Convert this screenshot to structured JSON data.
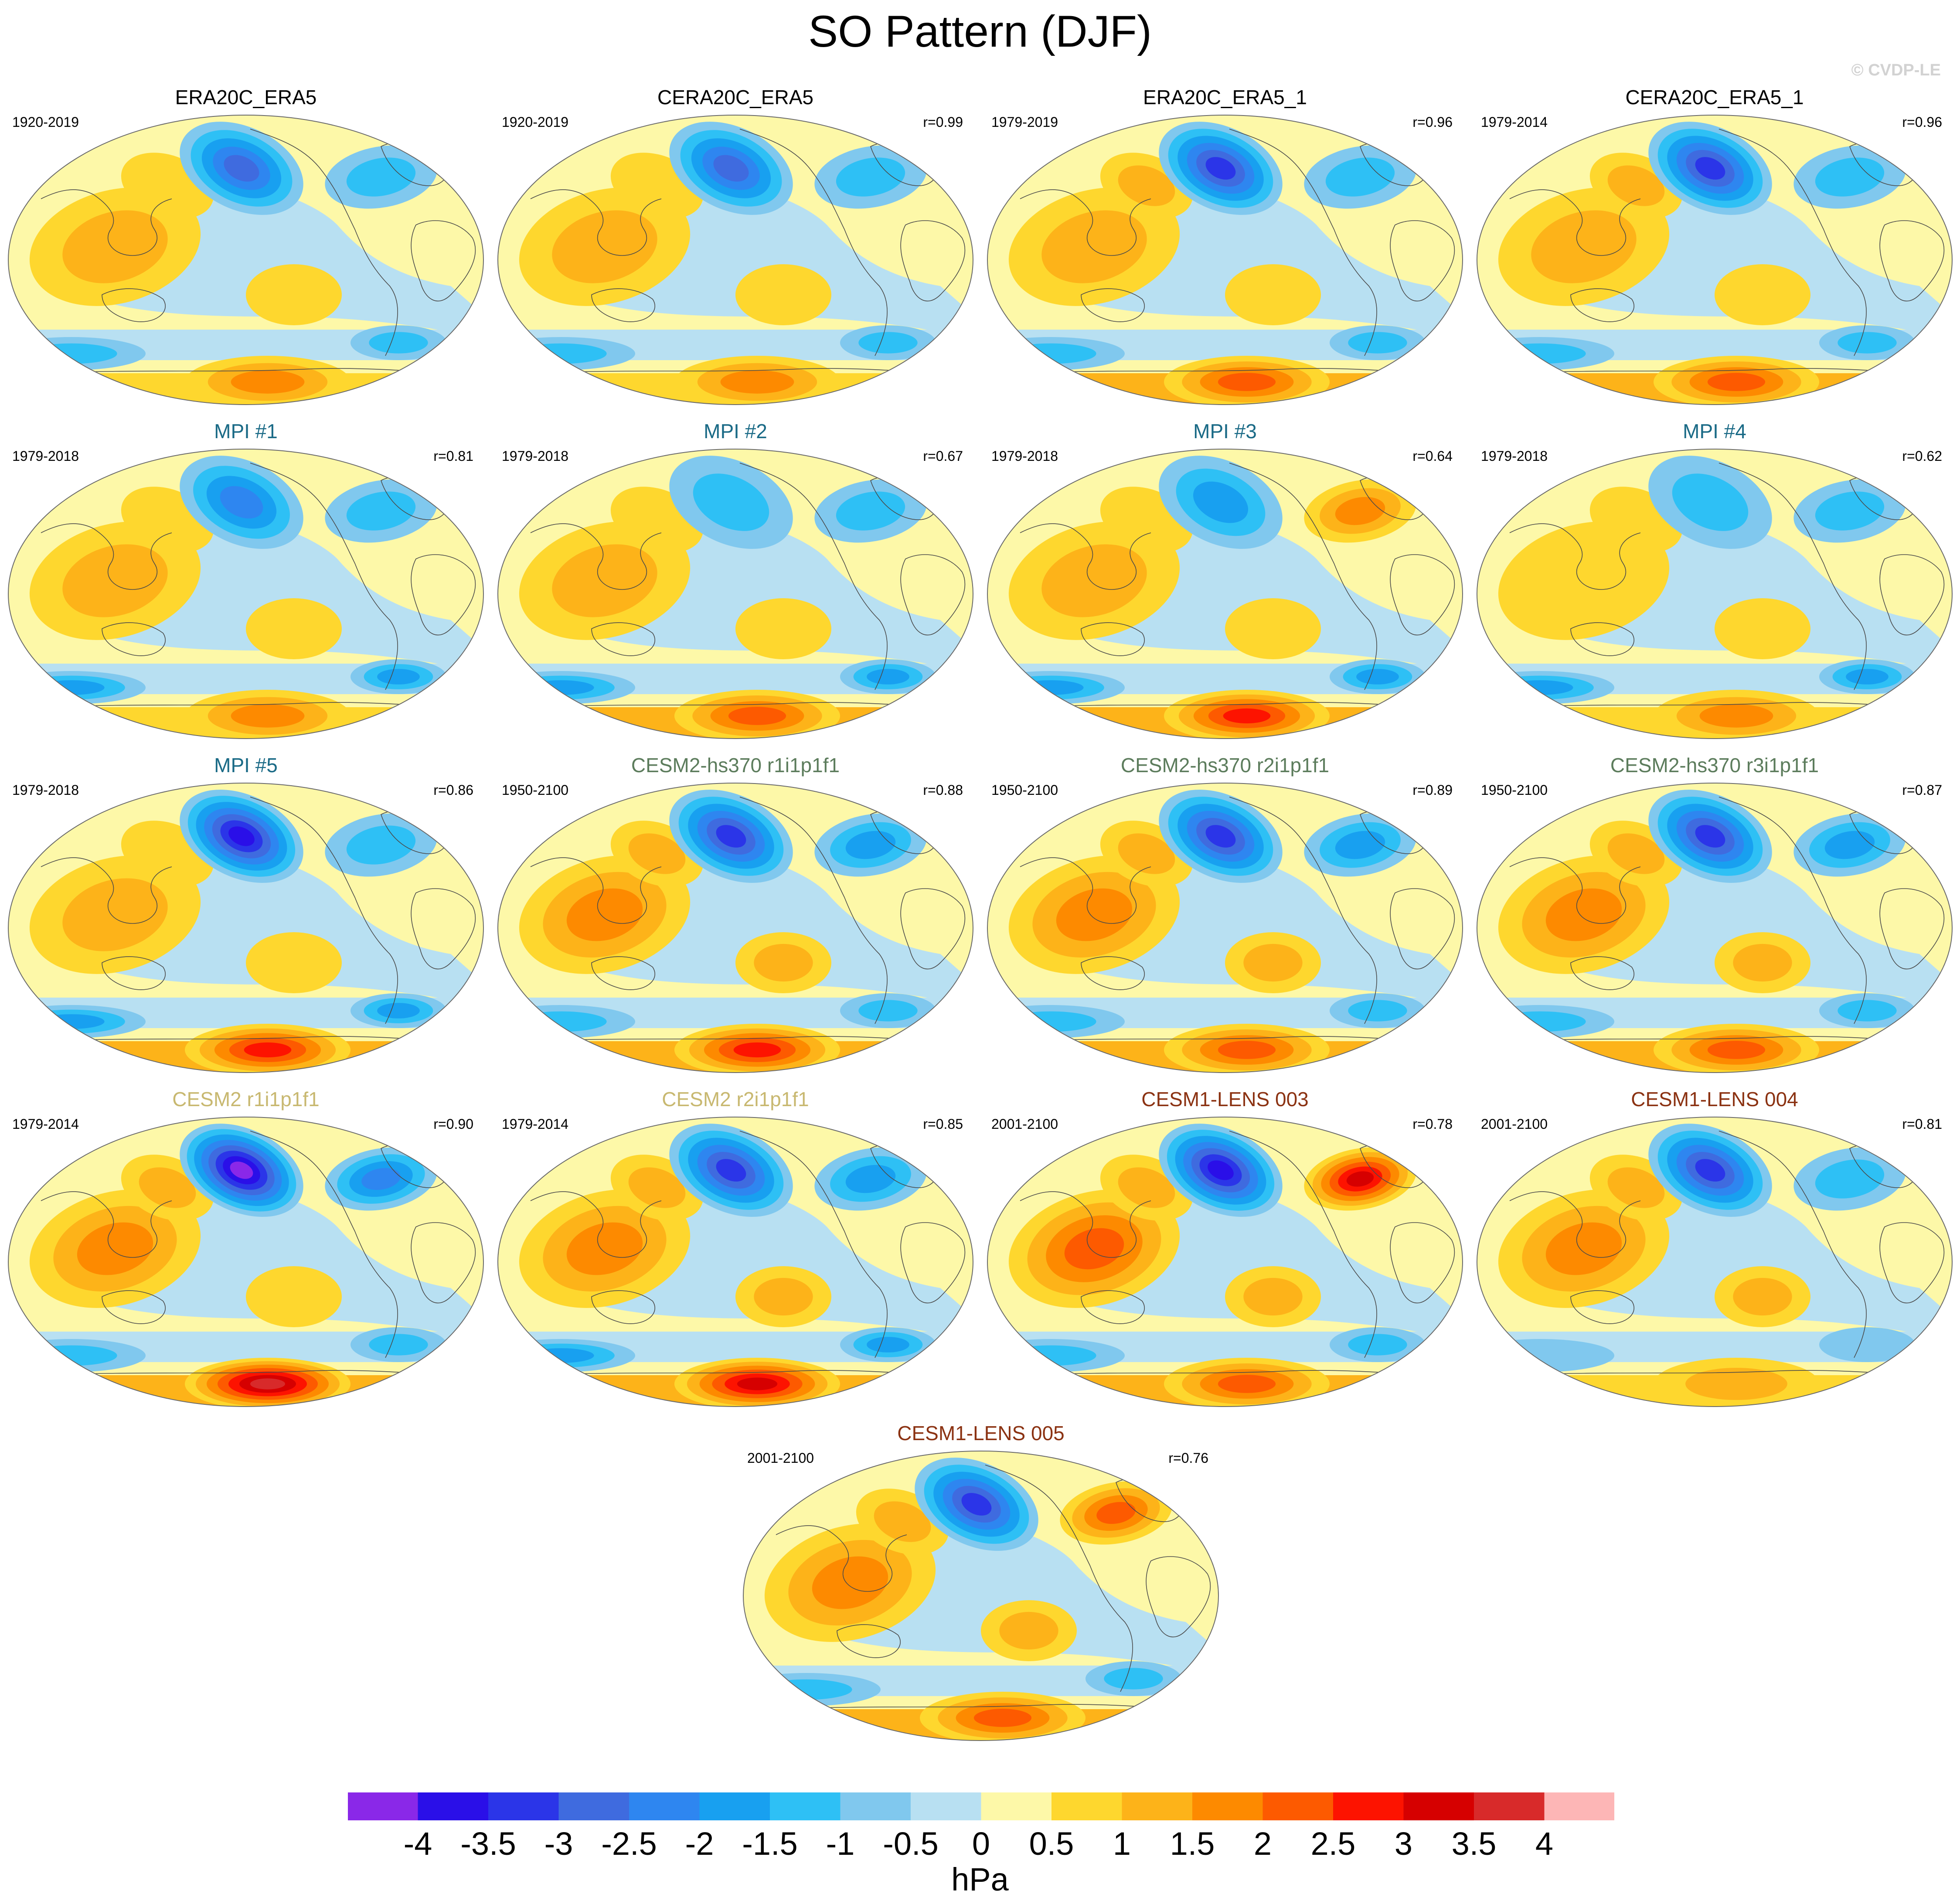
{
  "title": "SO Pattern (DJF)",
  "watermark": "© CVDP-LE",
  "chart_data": {
    "type": "heatmap",
    "projection": "Robinson (global, Pacific-centred)",
    "variable": "sea level pressure anomaly (Southern Oscillation pattern)",
    "unit": "hPa",
    "levels": [
      -4,
      -3.5,
      -3,
      -2.5,
      -2,
      -1.5,
      -1,
      -0.5,
      0,
      0.5,
      1,
      1.5,
      2,
      2.5,
      3,
      3.5,
      4
    ],
    "level_labels": [
      "-4",
      "-3.5",
      "-3",
      "-2.5",
      "-2",
      "-1.5",
      "-1",
      "-0.5",
      "0",
      "0.5",
      "1",
      "1.5",
      "2",
      "2.5",
      "3",
      "3.5",
      "4"
    ],
    "colors": [
      "#8a28e8",
      "#2a0fe8",
      "#2b35e8",
      "#3f6bdf",
      "#2e86f0",
      "#18a0f0",
      "#2ec0f5",
      "#80c8ee",
      "#b8e0f2",
      "#fdf8a8",
      "#fed72e",
      "#fdb319",
      "#fd8a00",
      "#fd5a00",
      "#fd1300",
      "#d60000",
      "#d82a2a",
      "#fdb6b6"
    ],
    "colors_style": {
      "title_black": "#000000",
      "title_mpi": "#1a6a86",
      "title_cesm2hs": "#5c7c5c",
      "title_cesm2": "#c8b870",
      "title_lens": "#8b3212"
    },
    "panels": [
      {
        "title": "ERA20C_ERA5",
        "years": "1920-2019",
        "r": "",
        "title_color": "#000000",
        "features": {
          "aleutian_low": -2.5,
          "icelandic_low": -1,
          "south_pacific_high": 0.5,
          "maritime_high": 1,
          "southern_low": -1,
          "antarctic_high": 1.5,
          "tropical_pacific": 0.5
        }
      },
      {
        "title": "CERA20C_ERA5",
        "years": "1920-2019",
        "r": "r=0.99",
        "title_color": "#000000",
        "features": {
          "aleutian_low": -2.5,
          "icelandic_low": -1,
          "south_pacific_high": 0.5,
          "maritime_high": 1,
          "southern_low": -1,
          "antarctic_high": 1.5,
          "tropical_pacific": 0.5
        }
      },
      {
        "title": "ERA20C_ERA5_1",
        "years": "1979-2019",
        "r": "r=0.96",
        "title_color": "#000000",
        "features": {
          "aleutian_low": -3,
          "icelandic_low": -1,
          "south_pacific_high": 0.5,
          "maritime_high": 1,
          "southern_low": -1,
          "antarctic_high": 2,
          "tropical_pacific": 1
        }
      },
      {
        "title": "CERA20C_ERA5_1",
        "years": "1979-2014",
        "r": "r=0.96",
        "title_color": "#000000",
        "features": {
          "aleutian_low": -3,
          "icelandic_low": -1,
          "south_pacific_high": 0.5,
          "maritime_high": 1,
          "southern_low": -1,
          "antarctic_high": 2,
          "tropical_pacific": 1
        }
      },
      {
        "title": "MPI #1",
        "years": "1979-2018",
        "r": "r=0.81",
        "title_color": "#1a6a86",
        "features": {
          "aleutian_low": -2,
          "icelandic_low": -1,
          "south_pacific_high": 0.5,
          "maritime_high": 1,
          "southern_low": -1.5,
          "antarctic_high": 1.5,
          "tropical_pacific": 0.5
        }
      },
      {
        "title": "MPI #2",
        "years": "1979-2018",
        "r": "r=0.67",
        "title_color": "#1a6a86",
        "features": {
          "aleutian_low": -1,
          "icelandic_low": -1,
          "south_pacific_high": 0.5,
          "maritime_high": 1,
          "southern_low": -1.5,
          "antarctic_high": 2,
          "tropical_pacific": 0.5
        }
      },
      {
        "title": "MPI #3",
        "years": "1979-2018",
        "r": "r=0.64",
        "title_color": "#1a6a86",
        "features": {
          "aleutian_low": -1.5,
          "icelandic_low": 1.5,
          "south_pacific_high": 0.5,
          "maritime_high": 1,
          "southern_low": -1.5,
          "antarctic_high": 2.5,
          "tropical_pacific": 0.5
        }
      },
      {
        "title": "MPI #4",
        "years": "1979-2018",
        "r": "r=0.62",
        "title_color": "#1a6a86",
        "features": {
          "aleutian_low": -1,
          "icelandic_low": -1,
          "south_pacific_high": 0.5,
          "maritime_high": 0.5,
          "southern_low": -1.5,
          "antarctic_high": 1.5,
          "tropical_pacific": 0.5
        }
      },
      {
        "title": "MPI #5",
        "years": "1979-2018",
        "r": "r=0.86",
        "title_color": "#1a6a86",
        "features": {
          "aleutian_low": -3.5,
          "icelandic_low": -1,
          "south_pacific_high": 0.5,
          "maritime_high": 1,
          "southern_low": -1.5,
          "antarctic_high": 2.5,
          "tropical_pacific": 0.5
        }
      },
      {
        "title": "CESM2-hs370 r1i1p1f1",
        "years": "1950-2100",
        "r": "r=0.88",
        "title_color": "#5c7c5c",
        "features": {
          "aleutian_low": -3,
          "icelandic_low": -1.5,
          "south_pacific_high": 1,
          "maritime_high": 1.5,
          "southern_low": -1,
          "antarctic_high": 2.5,
          "tropical_pacific": 1
        }
      },
      {
        "title": "CESM2-hs370 r2i1p1f1",
        "years": "1950-2100",
        "r": "r=0.89",
        "title_color": "#5c7c5c",
        "features": {
          "aleutian_low": -3,
          "icelandic_low": -1.5,
          "south_pacific_high": 1,
          "maritime_high": 1.5,
          "southern_low": -1,
          "antarctic_high": 2,
          "tropical_pacific": 1
        }
      },
      {
        "title": "CESM2-hs370 r3i1p1f1",
        "years": "1950-2100",
        "r": "r=0.87",
        "title_color": "#5c7c5c",
        "features": {
          "aleutian_low": -3,
          "icelandic_low": -1.5,
          "south_pacific_high": 1,
          "maritime_high": 1.5,
          "southern_low": -1,
          "antarctic_high": 2,
          "tropical_pacific": 1
        }
      },
      {
        "title": "CESM2 r1i1p1f1",
        "years": "1979-2014",
        "r": "r=0.90",
        "title_color": "#c8b870",
        "features": {
          "aleutian_low": -4,
          "icelandic_low": -2,
          "south_pacific_high": 0.5,
          "maritime_high": 1.5,
          "southern_low": -1,
          "antarctic_high": 3.5,
          "tropical_pacific": 1
        }
      },
      {
        "title": "CESM2 r2i1p1f1",
        "years": "1979-2014",
        "r": "r=0.85",
        "title_color": "#c8b870",
        "features": {
          "aleutian_low": -3,
          "icelandic_low": -1.5,
          "south_pacific_high": 1,
          "maritime_high": 1.5,
          "southern_low": -1.5,
          "antarctic_high": 3,
          "tropical_pacific": 1
        }
      },
      {
        "title": "CESM1-LENS 003",
        "years": "2001-2100",
        "r": "r=0.78",
        "title_color": "#8b3212",
        "features": {
          "aleutian_low": -3.5,
          "icelandic_low": 3,
          "south_pacific_high": 1,
          "maritime_high": 2,
          "southern_low": -1,
          "antarctic_high": 2,
          "tropical_pacific": 1
        }
      },
      {
        "title": "CESM1-LENS 004",
        "years": "2001-2100",
        "r": "r=0.81",
        "title_color": "#8b3212",
        "features": {
          "aleutian_low": -3,
          "icelandic_low": -1,
          "south_pacific_high": 1,
          "maritime_high": 1.5,
          "southern_low": -0.5,
          "antarctic_high": 1,
          "tropical_pacific": 1
        }
      },
      {
        "title": "CESM1-LENS 005",
        "years": "2001-2100",
        "r": "r=0.76",
        "title_color": "#8b3212",
        "features": {
          "aleutian_low": -3,
          "icelandic_low": 2,
          "south_pacific_high": 1,
          "maritime_high": 1.5,
          "southern_low": -1,
          "antarctic_high": 2,
          "tropical_pacific": 1
        }
      }
    ]
  }
}
